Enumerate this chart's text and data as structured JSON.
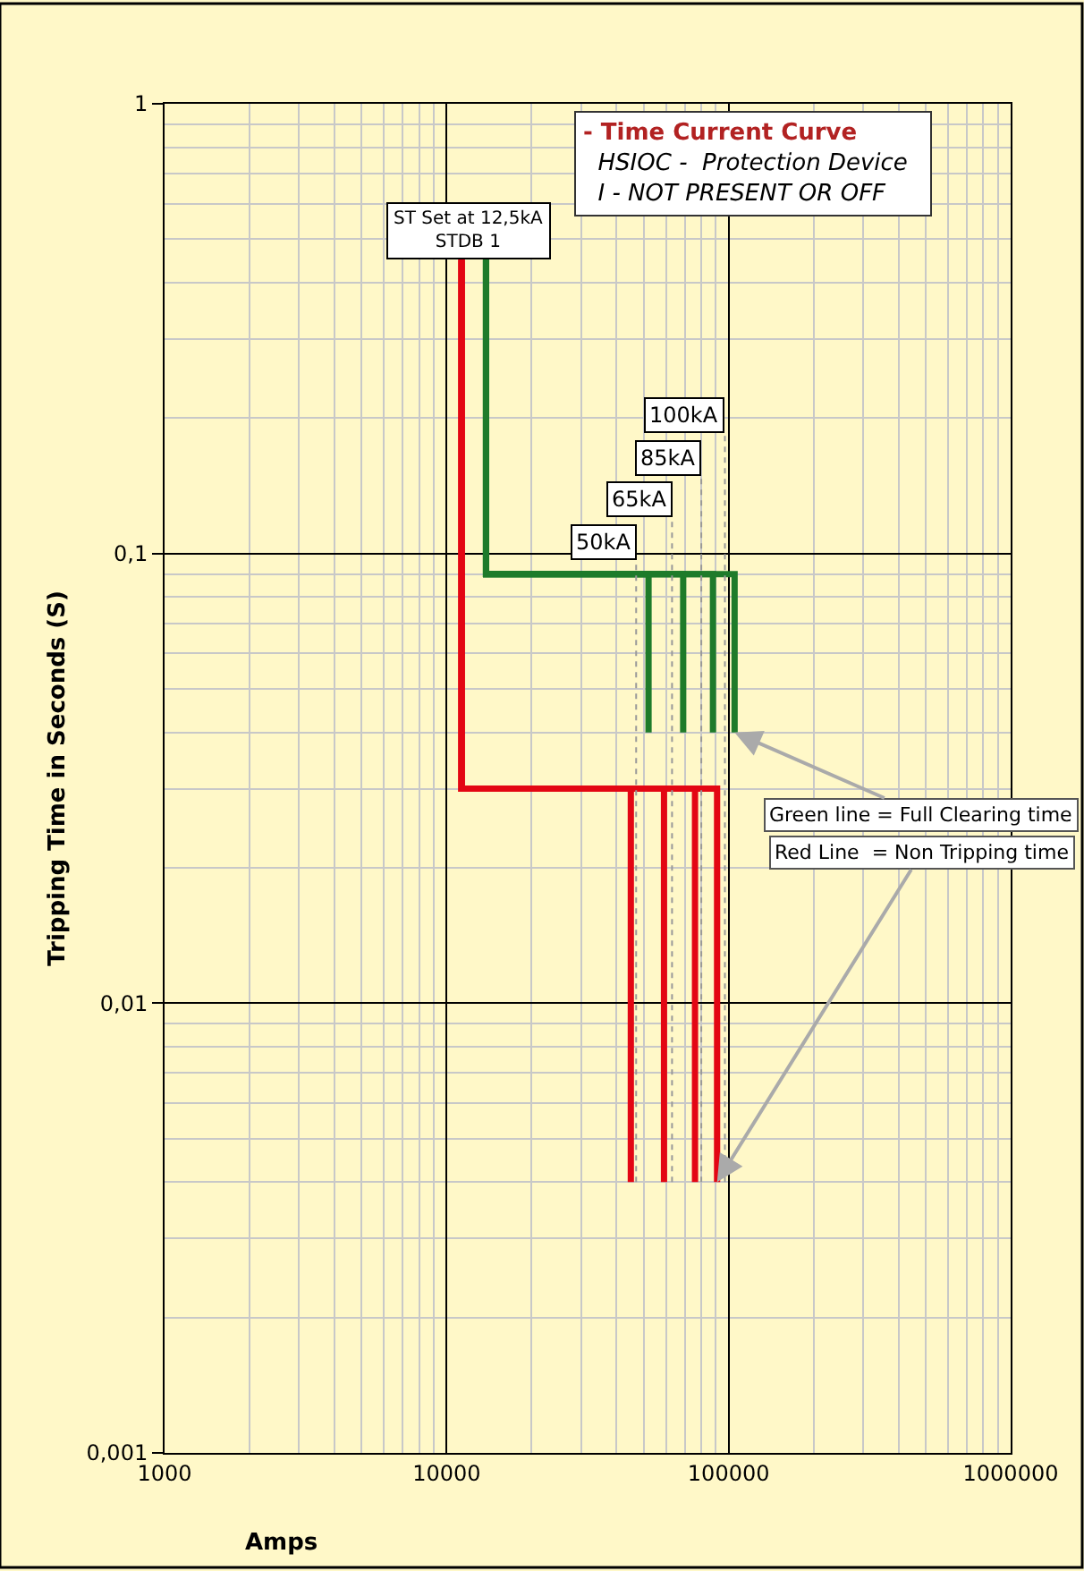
{
  "chart_data": {
    "type": "line",
    "title": "- Time Current Curve",
    "subtitle": "HSIOC -  Protection Device\nI - NOT PRESENT OR OFF",
    "xlabel": "Amps",
    "ylabel": "Tripping Time in Seconds (S)",
    "log": "xy",
    "grid": true,
    "xlim": [
      1000,
      1000000
    ],
    "xticks": [
      1000,
      10000,
      100000,
      1000000
    ],
    "ylim": [
      0.001,
      1
    ],
    "yticks": [
      {
        "value": 0.001,
        "label": "0,001"
      },
      {
        "value": 0.01,
        "label": "0,01"
      },
      {
        "value": 0.1,
        "label": "0,1"
      },
      {
        "value": 1,
        "label": "1"
      }
    ],
    "series": [
      {
        "color": "#e30613",
        "x": [
          11300,
          11300,
          45000,
          45000
        ],
        "values": [
          0.45,
          0.03,
          0.03,
          0.004
        ]
      },
      {
        "color": "#e30613",
        "x": [
          11300,
          11300,
          59000,
          59000
        ],
        "values": [
          0.45,
          0.03,
          0.03,
          0.004
        ]
      },
      {
        "color": "#e30613",
        "x": [
          11300,
          11300,
          76000,
          76000
        ],
        "values": [
          0.45,
          0.03,
          0.03,
          0.004
        ]
      },
      {
        "color": "#e30613",
        "x": [
          11300,
          11300,
          91000,
          91000
        ],
        "values": [
          0.45,
          0.03,
          0.03,
          0.004
        ]
      },
      {
        "color": "#1e7b2a",
        "x": [
          13800,
          13800,
          52000,
          52000
        ],
        "values": [
          0.45,
          0.09,
          0.09,
          0.04
        ]
      },
      {
        "color": "#1e7b2a",
        "x": [
          13800,
          13800,
          69000,
          69000
        ],
        "values": [
          0.45,
          0.09,
          0.09,
          0.04
        ]
      },
      {
        "color": "#1e7b2a",
        "x": [
          13800,
          13800,
          88000,
          88000
        ],
        "values": [
          0.45,
          0.09,
          0.09,
          0.04
        ]
      },
      {
        "color": "#1e7b2a",
        "x": [
          13800,
          13800,
          105000,
          105000
        ],
        "values": [
          0.45,
          0.09,
          0.09,
          0.04
        ]
      }
    ],
    "ref_lines": [
      {
        "axis": "x",
        "value": 47000,
        "label": "50kA",
        "color": "#999999",
        "line_style": "dotted"
      },
      {
        "axis": "x",
        "value": 63000,
        "label": "65kA",
        "color": "#999999",
        "line_style": "dotted"
      },
      {
        "axis": "x",
        "value": 80000,
        "label": "85kA",
        "color": "#999999",
        "line_style": "dotted"
      },
      {
        "axis": "x",
        "value": 97000,
        "label": "100kA",
        "color": "#999999",
        "line_style": "dotted"
      }
    ],
    "annotations": [
      "ST Set at 12,5kA\nSTDB 1",
      {
        "text": "Green line = Full Clearing time",
        "x": 105000,
        "y": 0.04
      },
      {
        "text": "Red Line  = Non Tripping time",
        "x": 91000,
        "y": 0.004
      }
    ]
  }
}
